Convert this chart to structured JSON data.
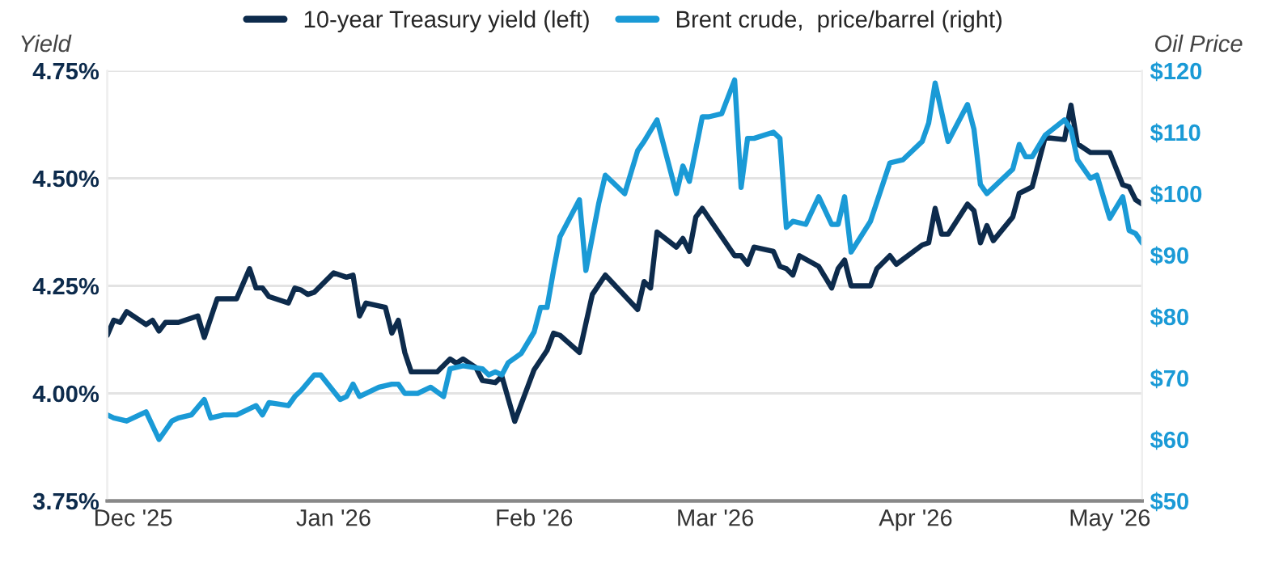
{
  "chart_data": {
    "type": "line",
    "ylabel": "Yield",
    "y2label": "Oil Price",
    "xlim": [
      "2025-11-27",
      "2026-05-06"
    ],
    "xticks": [
      {
        "value": "2025-12-01",
        "label": "Dec '25"
      },
      {
        "value": "2026-01-01",
        "label": "Jan '26"
      },
      {
        "value": "2026-02-01",
        "label": "Feb '26"
      },
      {
        "value": "2026-03-01",
        "label": "Mar '26"
      },
      {
        "value": "2026-04-01",
        "label": "Apr '26"
      },
      {
        "value": "2026-05-01",
        "label": "May '26"
      }
    ],
    "ylim": [
      3.75,
      4.75
    ],
    "yticks": [
      {
        "value": 3.75,
        "label": "3.75%"
      },
      {
        "value": 4.0,
        "label": "4.00%"
      },
      {
        "value": 4.25,
        "label": "4.25%"
      },
      {
        "value": 4.5,
        "label": "4.50%"
      },
      {
        "value": 4.75,
        "label": "4.75%"
      }
    ],
    "y2lim": [
      50,
      120
    ],
    "y2ticks": [
      {
        "value": 50,
        "label": "$50"
      },
      {
        "value": 60,
        "label": "$60"
      },
      {
        "value": 70,
        "label": "$70"
      },
      {
        "value": 80,
        "label": "$80"
      },
      {
        "value": 90,
        "label": "$90"
      },
      {
        "value": 100,
        "label": "$100"
      },
      {
        "value": 110,
        "label": "$110"
      },
      {
        "value": 120,
        "label": "$120"
      }
    ],
    "grid": "y",
    "legend": "top",
    "marker": "none",
    "line_style": "solid",
    "series": [
      {
        "name": "10-year Treasury yield (left)",
        "color": "#0d2b4c",
        "x": [
          "2025-11-27",
          "2025-11-28",
          "2025-11-29",
          "2025-11-30",
          "2025-12-03",
          "2025-12-04",
          "2025-12-05",
          "2025-12-06",
          "2025-12-08",
          "2025-12-11",
          "2025-12-12",
          "2025-12-14",
          "2025-12-17",
          "2025-12-19",
          "2025-12-20",
          "2025-12-21",
          "2025-12-22",
          "2025-12-25",
          "2025-12-26",
          "2025-12-27",
          "2025-12-28",
          "2025-12-29",
          "2026-01-01",
          "2026-01-03",
          "2026-01-04",
          "2026-01-05",
          "2026-01-06",
          "2026-01-09",
          "2026-01-10",
          "2026-01-11",
          "2026-01-12",
          "2026-01-13",
          "2026-01-17",
          "2026-01-19",
          "2026-01-20",
          "2026-01-21",
          "2026-01-23",
          "2026-01-24",
          "2026-01-26",
          "2026-01-27",
          "2026-01-29",
          "2026-02-01",
          "2026-02-03",
          "2026-02-04",
          "2026-02-05",
          "2026-02-08",
          "2026-02-10",
          "2026-02-12",
          "2026-02-17",
          "2026-02-18",
          "2026-02-19",
          "2026-02-20",
          "2026-02-23",
          "2026-02-24",
          "2026-02-25",
          "2026-02-26",
          "2026-02-27",
          "2026-03-04",
          "2026-03-05",
          "2026-03-06",
          "2026-03-07",
          "2026-03-10",
          "2026-03-11",
          "2026-03-12",
          "2026-03-13",
          "2026-03-14",
          "2026-03-17",
          "2026-03-19",
          "2026-03-20",
          "2026-03-21",
          "2026-03-22",
          "2026-03-25",
          "2026-03-26",
          "2026-03-28",
          "2026-03-29",
          "2026-04-02",
          "2026-04-03",
          "2026-04-04",
          "2026-04-05",
          "2026-04-06",
          "2026-04-09",
          "2026-04-10",
          "2026-04-11",
          "2026-04-12",
          "2026-04-13",
          "2026-04-16",
          "2026-04-17",
          "2026-04-19",
          "2026-04-21",
          "2026-04-24",
          "2026-04-25",
          "2026-04-26",
          "2026-04-28",
          "2026-05-01",
          "2026-05-03",
          "2026-05-04",
          "2026-05-05",
          "2026-05-06"
        ],
        "values": [
          4.135,
          4.17,
          4.165,
          4.19,
          4.16,
          4.17,
          4.145,
          4.165,
          4.165,
          4.18,
          4.13,
          4.22,
          4.22,
          4.29,
          4.245,
          4.245,
          4.225,
          4.21,
          4.245,
          4.24,
          4.23,
          4.235,
          4.28,
          4.27,
          4.275,
          4.18,
          4.21,
          4.2,
          4.14,
          4.17,
          4.095,
          4.05,
          4.05,
          4.08,
          4.07,
          4.08,
          4.06,
          4.03,
          4.025,
          4.04,
          3.935,
          4.055,
          4.1,
          4.14,
          4.135,
          4.095,
          4.23,
          4.275,
          4.195,
          4.26,
          4.245,
          4.375,
          4.34,
          4.36,
          4.33,
          4.41,
          4.43,
          4.32,
          4.32,
          4.3,
          4.34,
          4.33,
          4.295,
          4.29,
          4.275,
          4.32,
          4.295,
          4.245,
          4.29,
          4.31,
          4.25,
          4.25,
          4.29,
          4.32,
          4.3,
          4.345,
          4.35,
          4.43,
          4.37,
          4.37,
          4.44,
          4.425,
          4.35,
          4.39,
          4.355,
          4.41,
          4.465,
          4.48,
          4.595,
          4.59,
          4.67,
          4.58,
          4.56,
          4.56,
          4.485,
          4.48,
          4.45,
          4.44
        ]
      },
      {
        "name": "Brent crude,  price/barrel (right)",
        "color": "#1a9ad6",
        "axis": "y2",
        "x": [
          "2025-11-27",
          "2025-11-28",
          "2025-11-30",
          "2025-12-03",
          "2025-12-05",
          "2025-12-07",
          "2025-12-08",
          "2025-12-10",
          "2025-12-12",
          "2025-12-13",
          "2025-12-15",
          "2025-12-17",
          "2025-12-20",
          "2025-12-21",
          "2025-12-22",
          "2025-12-25",
          "2025-12-26",
          "2025-12-27",
          "2025-12-29",
          "2025-12-30",
          "2026-01-02",
          "2026-01-03",
          "2026-01-04",
          "2026-01-05",
          "2026-01-08",
          "2026-01-10",
          "2026-01-11",
          "2026-01-12",
          "2026-01-14",
          "2026-01-16",
          "2026-01-18",
          "2026-01-19",
          "2026-01-21",
          "2026-01-24",
          "2026-01-25",
          "2026-01-26",
          "2026-01-27",
          "2026-01-28",
          "2026-01-30",
          "2026-02-01",
          "2026-02-02",
          "2026-02-03",
          "2026-02-04",
          "2026-02-05",
          "2026-02-06",
          "2026-02-08",
          "2026-02-09",
          "2026-02-11",
          "2026-02-12",
          "2026-02-15",
          "2026-02-17",
          "2026-02-18",
          "2026-02-20",
          "2026-02-23",
          "2026-02-24",
          "2026-02-25",
          "2026-02-27",
          "2026-02-28",
          "2026-03-02",
          "2026-03-04",
          "2026-03-05",
          "2026-03-06",
          "2026-03-07",
          "2026-03-10",
          "2026-03-11",
          "2026-03-12",
          "2026-03-13",
          "2026-03-15",
          "2026-03-17",
          "2026-03-19",
          "2026-03-20",
          "2026-03-21",
          "2026-03-22",
          "2026-03-25",
          "2026-03-28",
          "2026-03-30",
          "2026-04-02",
          "2026-04-03",
          "2026-04-04",
          "2026-04-06",
          "2026-04-09",
          "2026-04-10",
          "2026-04-11",
          "2026-04-12",
          "2026-04-16",
          "2026-04-17",
          "2026-04-18",
          "2026-04-19",
          "2026-04-21",
          "2026-04-24",
          "2026-04-25",
          "2026-04-26",
          "2026-04-28",
          "2026-04-29",
          "2026-05-01",
          "2026-05-03",
          "2026-05-04",
          "2026-05-05",
          "2026-05-06"
        ],
        "values": [
          64,
          63.5,
          63,
          64.5,
          60,
          63,
          63.5,
          64,
          66.5,
          63.5,
          64,
          64,
          65.5,
          64,
          66,
          65.5,
          67,
          68,
          70.5,
          70.5,
          66.5,
          67,
          69,
          67,
          68.5,
          69,
          69,
          67.5,
          67.5,
          68.5,
          67,
          71.5,
          72,
          71.5,
          70.5,
          71,
          70.5,
          72.5,
          74,
          77.5,
          81.5,
          81.5,
          87.5,
          93,
          95,
          99,
          87.5,
          98.5,
          103,
          100,
          107,
          108.5,
          112,
          100,
          104.5,
          102,
          112.5,
          112.5,
          113,
          118.5,
          101,
          109,
          109,
          110,
          109,
          94.5,
          95.5,
          95,
          99.5,
          95,
          95,
          99.5,
          90.5,
          95.5,
          105,
          105.5,
          108.5,
          111.5,
          118,
          108.5,
          114.5,
          110.5,
          101.5,
          100,
          104,
          108,
          106,
          106,
          109.5,
          112,
          110.5,
          105.5,
          102.5,
          103,
          96,
          99.5,
          94,
          93.5,
          92
        ]
      }
    ]
  }
}
